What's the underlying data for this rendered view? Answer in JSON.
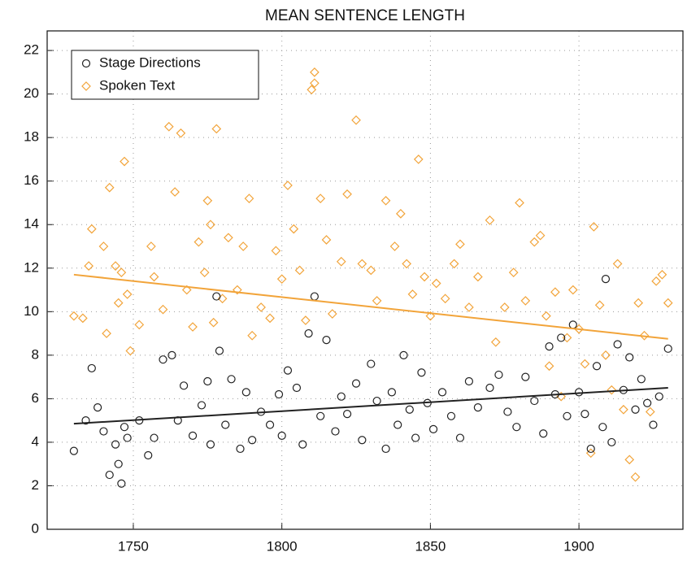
{
  "chart_data": {
    "type": "scatter",
    "title": "MEAN SENTENCE LENGTH",
    "xlim": [
      1721,
      1935
    ],
    "ylim": [
      0,
      22.9
    ],
    "xticks": [
      1750,
      1800,
      1850,
      1900
    ],
    "yticks": [
      0,
      2,
      4,
      6,
      8,
      10,
      12,
      14,
      16,
      18,
      20,
      22
    ],
    "grid": true,
    "legend": "upper left",
    "series": [
      {
        "name": "Spoken Text",
        "color": "#f2a43a",
        "marker": "diamond",
        "x": [
          1730,
          1733,
          1735,
          1736,
          1740,
          1741,
          1742,
          1744,
          1745,
          1746,
          1747,
          1748,
          1749,
          1752,
          1756,
          1757,
          1760,
          1762,
          1764,
          1766,
          1768,
          1770,
          1772,
          1774,
          1775,
          1776,
          1777,
          1778,
          1780,
          1782,
          1785,
          1787,
          1789,
          1790,
          1793,
          1796,
          1798,
          1800,
          1802,
          1804,
          1806,
          1808,
          1810,
          1811,
          1811,
          1813,
          1815,
          1817,
          1820,
          1822,
          1825,
          1827,
          1830,
          1832,
          1835,
          1838,
          1840,
          1842,
          1844,
          1846,
          1848,
          1850,
          1852,
          1855,
          1858,
          1860,
          1863,
          1866,
          1870,
          1872,
          1875,
          1878,
          1880,
          1882,
          1885,
          1887,
          1889,
          1890,
          1892,
          1894,
          1896,
          1898,
          1900,
          1902,
          1904,
          1905,
          1907,
          1909,
          1911,
          1913,
          1915,
          1917,
          1919,
          1920,
          1922,
          1924,
          1926,
          1928,
          1930
        ],
        "values": [
          9.8,
          9.7,
          12.1,
          13.8,
          13,
          9,
          15.7,
          12.1,
          10.4,
          11.8,
          16.9,
          10.8,
          8.2,
          9.4,
          13,
          11.6,
          10.1,
          18.5,
          15.5,
          18.2,
          11,
          9.3,
          13.2,
          11.8,
          15.1,
          14,
          9.5,
          18.4,
          10.6,
          13.4,
          11,
          13,
          15.2,
          8.9,
          10.2,
          9.7,
          12.8,
          11.5,
          15.8,
          13.8,
          11.9,
          9.6,
          20.2,
          21,
          20.5,
          15.2,
          13.3,
          9.9,
          12.3,
          15.4,
          18.8,
          12.2,
          11.9,
          10.5,
          15.1,
          13,
          14.5,
          12.2,
          10.8,
          17,
          11.6,
          9.8,
          11.3,
          10.6,
          12.2,
          13.1,
          10.2,
          11.6,
          14.2,
          8.6,
          10.2,
          11.8,
          15,
          10.5,
          13.2,
          13.5,
          9.8,
          7.5,
          10.9,
          6.1,
          8.8,
          11,
          9.2,
          7.6,
          3.5,
          13.9,
          10.3,
          8,
          6.4,
          12.2,
          5.5,
          3.2,
          2.4,
          10.4,
          8.9,
          5.4,
          11.4,
          11.7,
          10.4
        ],
        "trend": {
          "x": [
            1730,
            1930
          ],
          "values": [
            11.7,
            8.75
          ]
        }
      },
      {
        "name": "Stage Directions",
        "color": "#222222",
        "marker": "circle",
        "x": [
          1730,
          1734,
          1736,
          1738,
          1740,
          1742,
          1744,
          1745,
          1746,
          1747,
          1748,
          1752,
          1755,
          1757,
          1760,
          1763,
          1765,
          1767,
          1770,
          1773,
          1775,
          1776,
          1778,
          1779,
          1781,
          1783,
          1786,
          1788,
          1790,
          1793,
          1796,
          1799,
          1800,
          1802,
          1805,
          1807,
          1809,
          1811,
          1813,
          1815,
          1818,
          1820,
          1822,
          1825,
          1827,
          1830,
          1832,
          1835,
          1837,
          1839,
          1841,
          1843,
          1845,
          1847,
          1849,
          1851,
          1854,
          1857,
          1860,
          1863,
          1866,
          1870,
          1873,
          1876,
          1879,
          1882,
          1885,
          1888,
          1890,
          1892,
          1894,
          1896,
          1898,
          1900,
          1902,
          1904,
          1906,
          1908,
          1909,
          1911,
          1913,
          1915,
          1917,
          1919,
          1921,
          1923,
          1925,
          1927,
          1930
        ],
        "values": [
          3.6,
          5,
          7.4,
          5.6,
          4.5,
          2.5,
          3.9,
          3,
          2.1,
          4.7,
          4.2,
          5,
          3.4,
          4.2,
          7.8,
          8,
          5,
          6.6,
          4.3,
          5.7,
          6.8,
          3.9,
          10.7,
          8.2,
          4.8,
          6.9,
          3.7,
          6.3,
          4.1,
          5.4,
          4.8,
          6.2,
          4.3,
          7.3,
          6.5,
          3.9,
          9,
          10.7,
          5.2,
          8.7,
          4.5,
          6.1,
          5.3,
          6.7,
          4.1,
          7.6,
          5.9,
          3.7,
          6.3,
          4.8,
          8,
          5.5,
          4.2,
          7.2,
          5.8,
          4.6,
          6.3,
          5.2,
          4.2,
          6.8,
          5.6,
          6.5,
          7.1,
          5.4,
          4.7,
          7,
          5.9,
          4.4,
          8.4,
          6.2,
          8.8,
          5.2,
          9.4,
          6.3,
          5.3,
          3.7,
          7.5,
          4.7,
          11.5,
          4,
          8.5,
          6.4,
          7.9,
          5.5,
          6.9,
          5.8,
          4.8,
          6.1,
          8.3
        ],
        "trend": {
          "x": [
            1730,
            1930
          ],
          "values": [
            4.85,
            6.5
          ]
        }
      }
    ]
  }
}
